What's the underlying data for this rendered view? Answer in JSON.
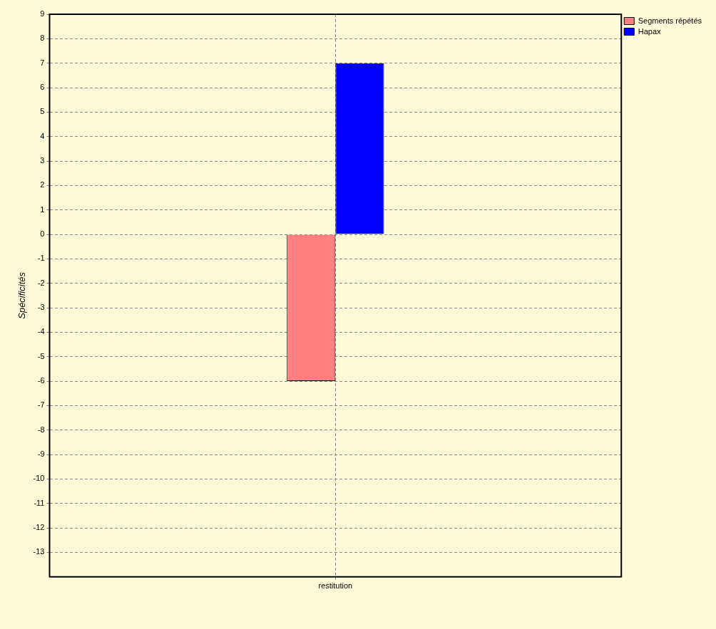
{
  "chart_data": {
    "type": "bar",
    "ylabel": "Spécificités",
    "categories": [
      "restitution"
    ],
    "series": [
      {
        "name": "Segments répétés",
        "color": "#ff8080",
        "values": [
          -6
        ]
      },
      {
        "name": "Hapax",
        "color": "#0000ff",
        "values": [
          7
        ]
      }
    ],
    "ylim": [
      -14,
      9
    ],
    "yticks": [
      -13,
      -12,
      -11,
      -10,
      -9,
      -8,
      -7,
      -6,
      -5,
      -4,
      -3,
      -2,
      -1,
      0,
      1,
      2,
      3,
      4,
      5,
      6,
      7,
      8,
      9
    ],
    "grid": true,
    "legend": "top right"
  }
}
